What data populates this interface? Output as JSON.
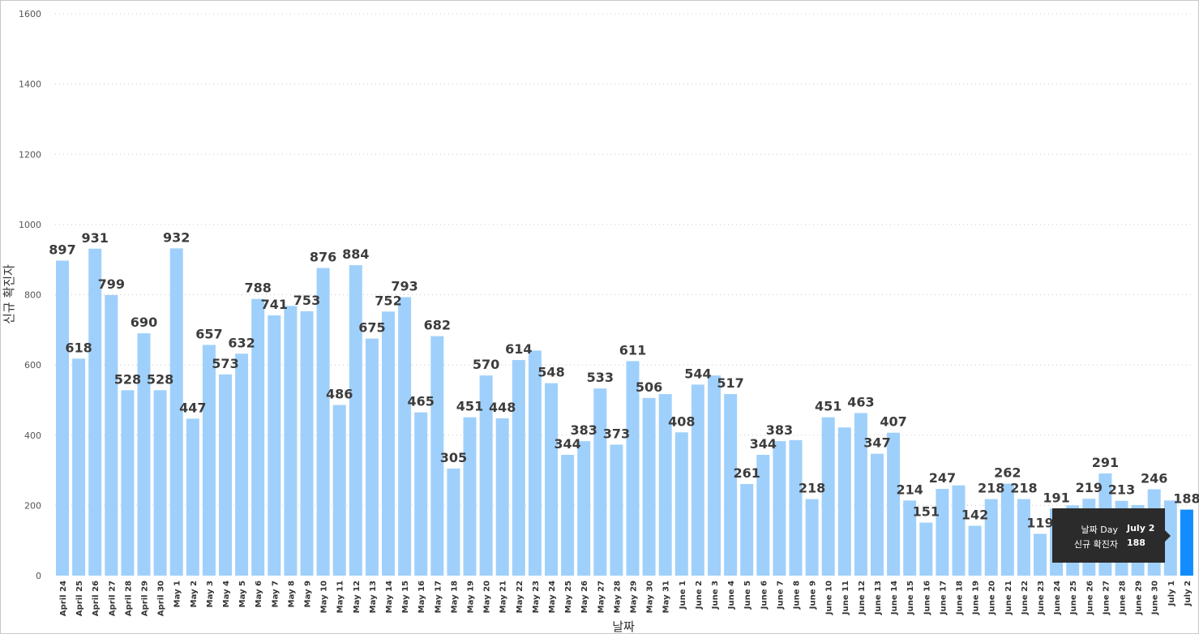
{
  "chart_data": {
    "type": "bar",
    "xlabel": "날짜",
    "ylabel": "신규 확진자",
    "ylim": [
      0,
      1600
    ],
    "yticks": [
      0,
      200,
      400,
      600,
      800,
      1000,
      1200,
      1400,
      1600
    ],
    "grid": true,
    "bar_color": "#9fd0fb",
    "highlight_color": "#118dff",
    "highlight_category": "July 2",
    "categories": [
      "April 24",
      "April 25",
      "April 26",
      "April 27",
      "April 28",
      "April 29",
      "April 30",
      "May 1",
      "May 2",
      "May 3",
      "May 4",
      "May 5",
      "May 6",
      "May 7",
      "May 8",
      "May 9",
      "May 10",
      "May 11",
      "May 12",
      "May 13",
      "May 14",
      "May 15",
      "May 16",
      "May 17",
      "May 18",
      "May 19",
      "May 20",
      "May 21",
      "May 22",
      "May 23",
      "May 24",
      "May 25",
      "May 26",
      "May 27",
      "May 28",
      "May 29",
      "May 30",
      "May 31",
      "June 1",
      "June 2",
      "June 3",
      "June 4",
      "June 5",
      "June 6",
      "June 7",
      "June 8",
      "June 9",
      "June 10",
      "June 11",
      "June 12",
      "June 13",
      "June 14",
      "June 15",
      "June 16",
      "June 17",
      "June 18",
      "June 19",
      "June 20",
      "June 21",
      "June 22",
      "June 23",
      "June 24",
      "June 25",
      "June 26",
      "June 27",
      "June 28",
      "June 29",
      "June 30",
      "July 1",
      "July 2"
    ],
    "values": [
      897,
      618,
      931,
      799,
      528,
      690,
      528,
      932,
      447,
      657,
      573,
      632,
      788,
      741,
      768,
      753,
      876,
      486,
      884,
      675,
      752,
      793,
      465,
      682,
      305,
      451,
      570,
      448,
      614,
      641,
      548,
      344,
      383,
      533,
      373,
      611,
      506,
      517,
      408,
      544,
      570,
      517,
      261,
      344,
      383,
      386,
      218,
      451,
      422,
      463,
      347,
      407,
      214,
      151,
      247,
      257,
      142,
      218,
      262,
      218,
      119,
      191,
      200,
      219,
      291,
      213,
      201,
      246,
      214,
      188
    ],
    "data_labels": [
      "897",
      "618",
      "931",
      "799",
      "528",
      "690",
      "528",
      "932",
      "447",
      "657",
      "573",
      "632",
      "788",
      "741",
      "",
      "753",
      "876",
      "486",
      "884",
      "675",
      "752",
      "793",
      "465",
      "682",
      "305",
      "451",
      "570",
      "448",
      "614",
      "",
      "548",
      "344",
      "383",
      "533",
      "373",
      "611",
      "506",
      "",
      "408",
      "544",
      "",
      "517",
      "261",
      "344",
      "383",
      "",
      "218",
      "451",
      "",
      "463",
      "347",
      "407",
      "214",
      "151",
      "247",
      "",
      "142",
      "218",
      "262",
      "218",
      "119",
      "191",
      "",
      "219",
      "291",
      "213",
      "",
      "246",
      "",
      "188"
    ]
  },
  "tooltip": {
    "rows": [
      {
        "key": "날짜 Day",
        "value": "July 2"
      },
      {
        "key": "신규 확진자",
        "value": "188"
      }
    ]
  }
}
